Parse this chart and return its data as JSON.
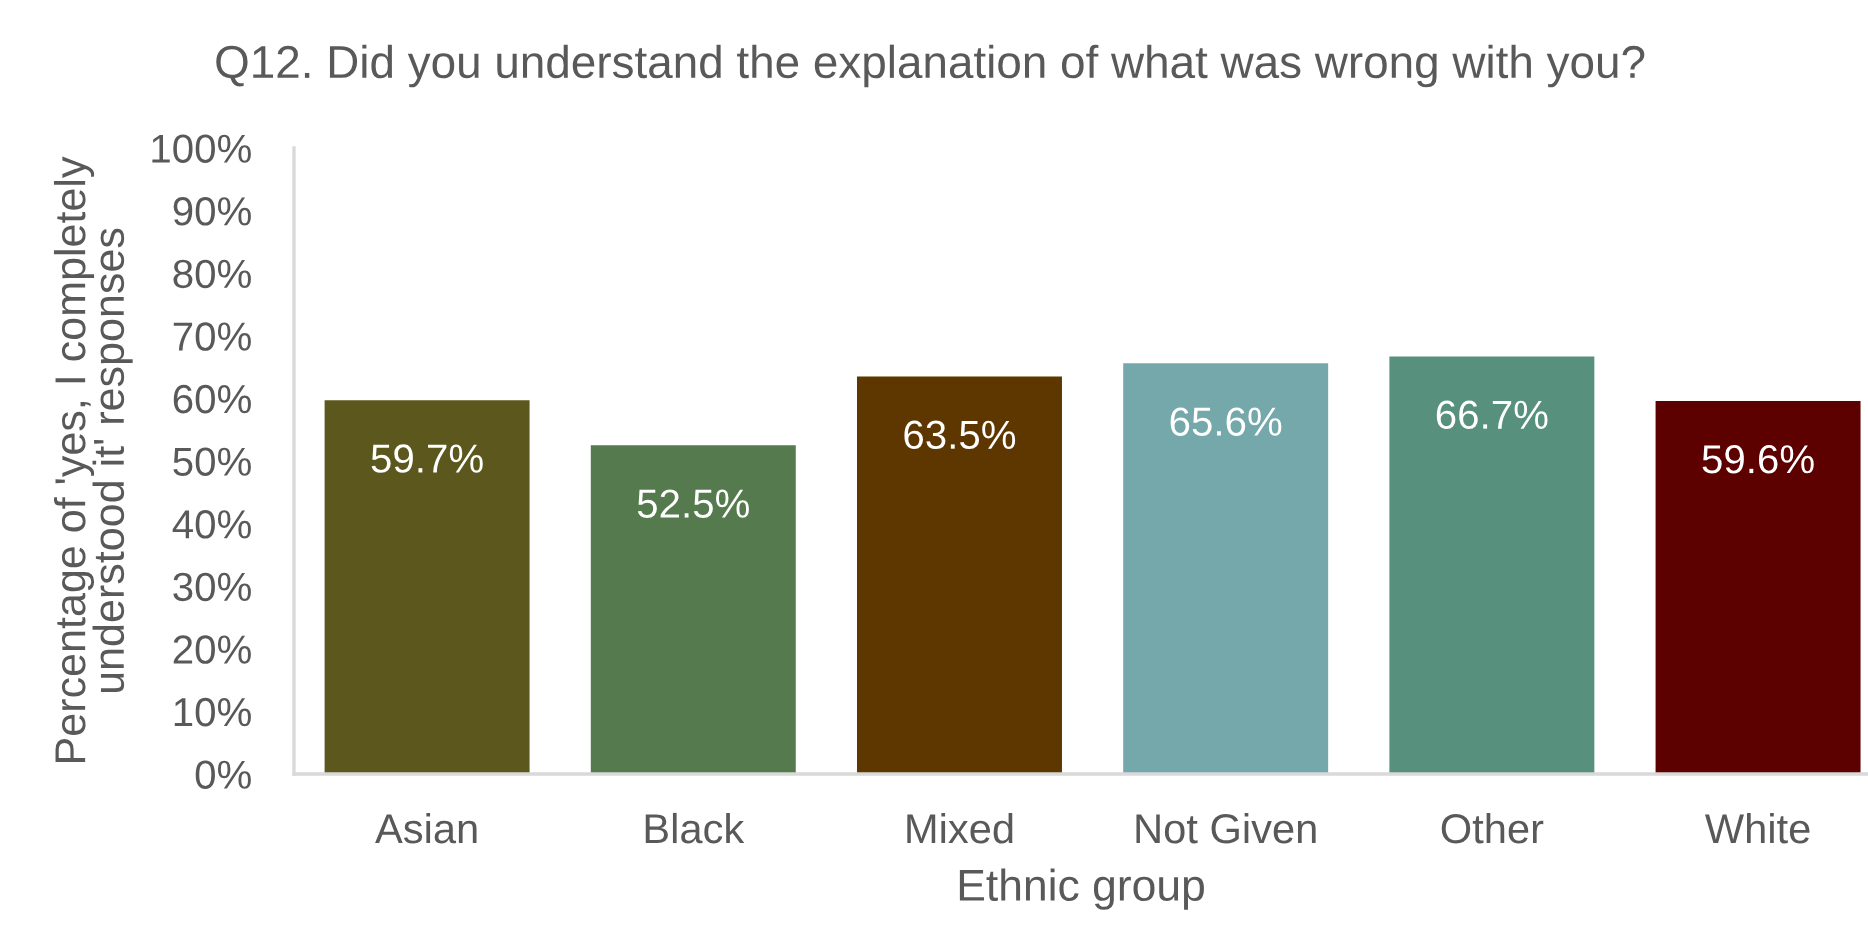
{
  "chart_data": {
    "type": "bar",
    "title": "Q12. Did you understand the explanation of what was wrong with you?",
    "xlabel": "Ethnic group",
    "ylabel": "Percentage of 'yes, I completely\nunderstood it' responses",
    "categories": [
      "Asian",
      "Black",
      "Mixed",
      "Not Given",
      "Other",
      "White"
    ],
    "values": [
      59.7,
      52.5,
      63.5,
      65.6,
      66.7,
      59.6
    ],
    "colors": [
      "#5b571d",
      "#547a4d",
      "#5e3700",
      "#75a8aa",
      "#57907d",
      "#5c0000"
    ],
    "value_labels": [
      "59.7%",
      "52.5%",
      "63.5%",
      "65.6%",
      "66.7%",
      "59.6%"
    ],
    "ylim": [
      0,
      100
    ],
    "yticks": [
      {
        "value": 0,
        "label": "0%"
      },
      {
        "value": 10,
        "label": "10%"
      },
      {
        "value": 20,
        "label": "20%"
      },
      {
        "value": 30,
        "label": "30%"
      },
      {
        "value": 40,
        "label": "40%"
      },
      {
        "value": 50,
        "label": "50%"
      },
      {
        "value": 60,
        "label": "60%"
      },
      {
        "value": 70,
        "label": "70%"
      },
      {
        "value": 80,
        "label": "80%"
      },
      {
        "value": 90,
        "label": "90%"
      },
      {
        "value": 100,
        "label": "100%"
      }
    ],
    "grid": false,
    "legend": false
  }
}
